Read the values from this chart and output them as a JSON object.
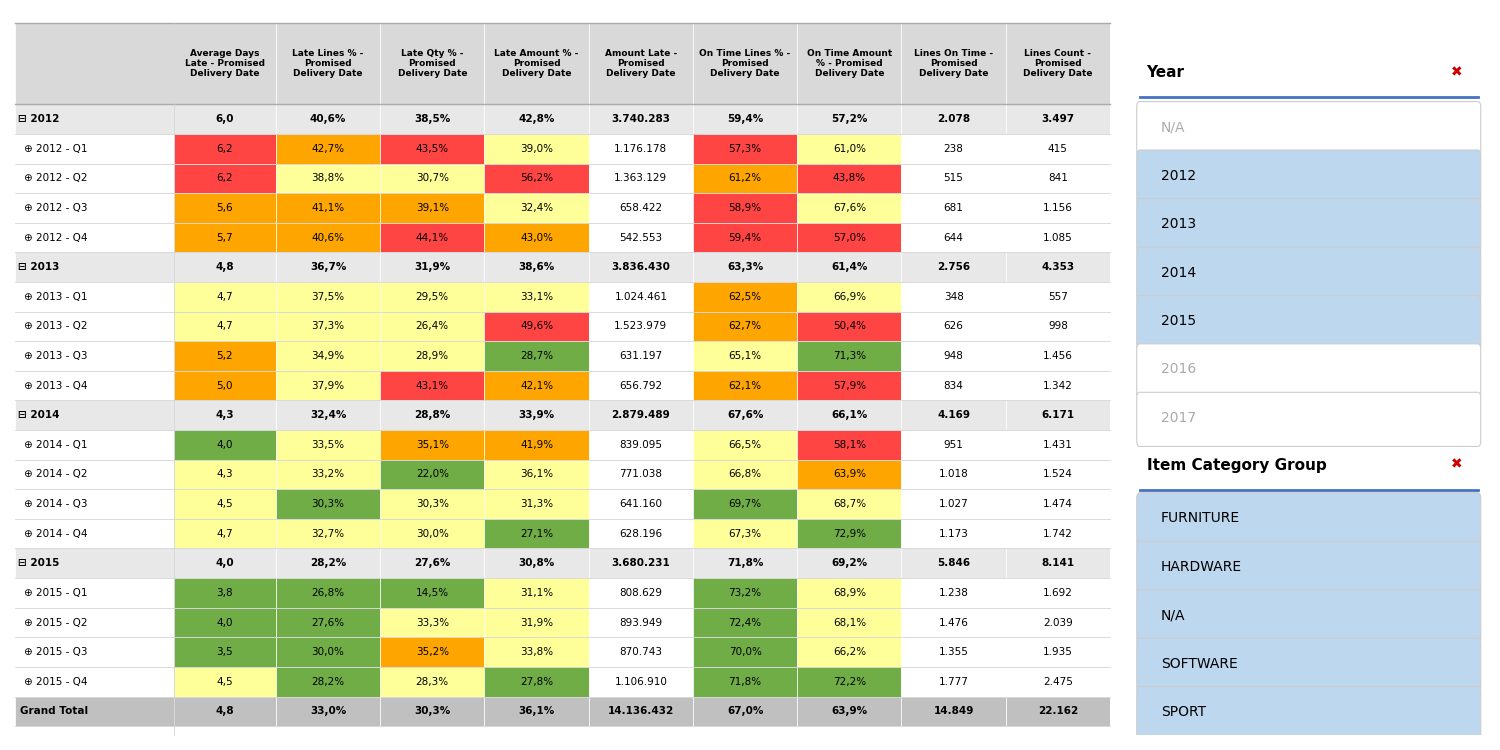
{
  "columns": [
    "Average Days\nLate - Promised\nDelivery Date",
    "Late Lines % -\nPromised\nDelivery Date",
    "Late Qty % -\nPromised\nDelivery Date",
    "Late Amount % -\nPromised\nDelivery Date",
    "Amount Late -\nPromised\nDelivery Date",
    "On Time Lines % -\nPromised\nDelivery Date",
    "On Time Amount\n% - Promised\nDelivery Date",
    "Lines On Time -\nPromised\nDelivery Date",
    "Lines Count -\nPromised\nDelivery Date"
  ],
  "rows": [
    {
      "label": "2012",
      "level": 0,
      "bold": true,
      "values": [
        "6,0",
        "40,6%",
        "38,5%",
        "42,8%",
        "3.740.283",
        "59,4%",
        "57,2%",
        "2.078",
        "3.497"
      ],
      "colors": [
        "",
        "",
        "",
        "",
        "",
        "",
        "",
        "",
        ""
      ]
    },
    {
      "label": "2012 - Q1",
      "level": 1,
      "bold": false,
      "values": [
        "6,2",
        "42,7%",
        "43,5%",
        "39,0%",
        "1.176.178",
        "57,3%",
        "61,0%",
        "238",
        "415"
      ],
      "colors": [
        "red",
        "orange",
        "red",
        "yellow",
        "",
        "red",
        "yellow",
        "",
        ""
      ]
    },
    {
      "label": "2012 - Q2",
      "level": 1,
      "bold": false,
      "values": [
        "6,2",
        "38,8%",
        "30,7%",
        "56,2%",
        "1.363.129",
        "61,2%",
        "43,8%",
        "515",
        "841"
      ],
      "colors": [
        "red",
        "yellow",
        "yellow",
        "red",
        "",
        "orange",
        "red",
        "",
        ""
      ]
    },
    {
      "label": "2012 - Q3",
      "level": 1,
      "bold": false,
      "values": [
        "5,6",
        "41,1%",
        "39,1%",
        "32,4%",
        "658.422",
        "58,9%",
        "67,6%",
        "681",
        "1.156"
      ],
      "colors": [
        "orange",
        "orange",
        "orange",
        "yellow",
        "",
        "red",
        "yellow",
        "",
        ""
      ]
    },
    {
      "label": "2012 - Q4",
      "level": 1,
      "bold": false,
      "values": [
        "5,7",
        "40,6%",
        "44,1%",
        "43,0%",
        "542.553",
        "59,4%",
        "57,0%",
        "644",
        "1.085"
      ],
      "colors": [
        "orange",
        "orange",
        "red",
        "orange",
        "",
        "red",
        "red",
        "",
        ""
      ]
    },
    {
      "label": "2013",
      "level": 0,
      "bold": true,
      "values": [
        "4,8",
        "36,7%",
        "31,9%",
        "38,6%",
        "3.836.430",
        "63,3%",
        "61,4%",
        "2.756",
        "4.353"
      ],
      "colors": [
        "",
        "",
        "",
        "",
        "",
        "",
        "",
        "",
        ""
      ]
    },
    {
      "label": "2013 - Q1",
      "level": 1,
      "bold": false,
      "values": [
        "4,7",
        "37,5%",
        "29,5%",
        "33,1%",
        "1.024.461",
        "62,5%",
        "66,9%",
        "348",
        "557"
      ],
      "colors": [
        "yellow",
        "yellow",
        "yellow",
        "yellow",
        "",
        "orange",
        "yellow",
        "",
        ""
      ]
    },
    {
      "label": "2013 - Q2",
      "level": 1,
      "bold": false,
      "values": [
        "4,7",
        "37,3%",
        "26,4%",
        "49,6%",
        "1.523.979",
        "62,7%",
        "50,4%",
        "626",
        "998"
      ],
      "colors": [
        "yellow",
        "yellow",
        "yellow",
        "red",
        "",
        "orange",
        "red",
        "",
        ""
      ]
    },
    {
      "label": "2013 - Q3",
      "level": 1,
      "bold": false,
      "values": [
        "5,2",
        "34,9%",
        "28,9%",
        "28,7%",
        "631.197",
        "65,1%",
        "71,3%",
        "948",
        "1.456"
      ],
      "colors": [
        "orange",
        "yellow",
        "yellow",
        "green",
        "",
        "yellow",
        "green",
        "",
        ""
      ]
    },
    {
      "label": "2013 - Q4",
      "level": 1,
      "bold": false,
      "values": [
        "5,0",
        "37,9%",
        "43,1%",
        "42,1%",
        "656.792",
        "62,1%",
        "57,9%",
        "834",
        "1.342"
      ],
      "colors": [
        "orange",
        "yellow",
        "red",
        "orange",
        "",
        "orange",
        "red",
        "",
        ""
      ]
    },
    {
      "label": "2014",
      "level": 0,
      "bold": true,
      "values": [
        "4,3",
        "32,4%",
        "28,8%",
        "33,9%",
        "2.879.489",
        "67,6%",
        "66,1%",
        "4.169",
        "6.171"
      ],
      "colors": [
        "",
        "",
        "",
        "",
        "",
        "",
        "",
        "",
        ""
      ]
    },
    {
      "label": "2014 - Q1",
      "level": 1,
      "bold": false,
      "values": [
        "4,0",
        "33,5%",
        "35,1%",
        "41,9%",
        "839.095",
        "66,5%",
        "58,1%",
        "951",
        "1.431"
      ],
      "colors": [
        "green",
        "yellow",
        "orange",
        "orange",
        "",
        "yellow",
        "red",
        "",
        ""
      ]
    },
    {
      "label": "2014 - Q2",
      "level": 1,
      "bold": false,
      "values": [
        "4,3",
        "33,2%",
        "22,0%",
        "36,1%",
        "771.038",
        "66,8%",
        "63,9%",
        "1.018",
        "1.524"
      ],
      "colors": [
        "yellow",
        "yellow",
        "green",
        "yellow",
        "",
        "yellow",
        "orange",
        "",
        ""
      ]
    },
    {
      "label": "2014 - Q3",
      "level": 1,
      "bold": false,
      "values": [
        "4,5",
        "30,3%",
        "30,3%",
        "31,3%",
        "641.160",
        "69,7%",
        "68,7%",
        "1.027",
        "1.474"
      ],
      "colors": [
        "yellow",
        "green",
        "yellow",
        "yellow",
        "",
        "green",
        "yellow",
        "",
        ""
      ]
    },
    {
      "label": "2014 - Q4",
      "level": 1,
      "bold": false,
      "values": [
        "4,7",
        "32,7%",
        "30,0%",
        "27,1%",
        "628.196",
        "67,3%",
        "72,9%",
        "1.173",
        "1.742"
      ],
      "colors": [
        "yellow",
        "yellow",
        "yellow",
        "green",
        "",
        "yellow",
        "green",
        "",
        ""
      ]
    },
    {
      "label": "2015",
      "level": 0,
      "bold": true,
      "values": [
        "4,0",
        "28,2%",
        "27,6%",
        "30,8%",
        "3.680.231",
        "71,8%",
        "69,2%",
        "5.846",
        "8.141"
      ],
      "colors": [
        "",
        "",
        "",
        "",
        "",
        "",
        "",
        "",
        ""
      ]
    },
    {
      "label": "2015 - Q1",
      "level": 1,
      "bold": false,
      "values": [
        "3,8",
        "26,8%",
        "14,5%",
        "31,1%",
        "808.629",
        "73,2%",
        "68,9%",
        "1.238",
        "1.692"
      ],
      "colors": [
        "green",
        "green",
        "green",
        "yellow",
        "",
        "green",
        "yellow",
        "",
        ""
      ]
    },
    {
      "label": "2015 - Q2",
      "level": 1,
      "bold": false,
      "values": [
        "4,0",
        "27,6%",
        "33,3%",
        "31,9%",
        "893.949",
        "72,4%",
        "68,1%",
        "1.476",
        "2.039"
      ],
      "colors": [
        "green",
        "green",
        "yellow",
        "yellow",
        "",
        "green",
        "yellow",
        "",
        ""
      ]
    },
    {
      "label": "2015 - Q3",
      "level": 1,
      "bold": false,
      "values": [
        "3,5",
        "30,0%",
        "35,2%",
        "33,8%",
        "870.743",
        "70,0%",
        "66,2%",
        "1.355",
        "1.935"
      ],
      "colors": [
        "green",
        "green",
        "orange",
        "yellow",
        "",
        "green",
        "yellow",
        "",
        ""
      ]
    },
    {
      "label": "2015 - Q4",
      "level": 1,
      "bold": false,
      "values": [
        "4,5",
        "28,2%",
        "28,3%",
        "27,8%",
        "1.106.910",
        "71,8%",
        "72,2%",
        "1.777",
        "2.475"
      ],
      "colors": [
        "yellow",
        "green",
        "yellow",
        "green",
        "",
        "green",
        "green",
        "",
        ""
      ]
    },
    {
      "label": "Grand Total",
      "level": 0,
      "bold": true,
      "values": [
        "4,8",
        "33,0%",
        "30,3%",
        "36,1%",
        "14.136.432",
        "67,0%",
        "63,9%",
        "14.849",
        "22.162"
      ],
      "colors": [
        "",
        "",
        "",
        "",
        "",
        "",
        "",
        "",
        ""
      ],
      "is_grand_total": true
    }
  ],
  "color_map": {
    "red": "#FF4444",
    "orange": "#FFA500",
    "yellow": "#FFFF99",
    "green": "#70AD47",
    "": "#FFFFFF"
  },
  "sidebar_years": [
    "N/A",
    "2012",
    "2013",
    "2014",
    "2015",
    "2016",
    "2017"
  ],
  "sidebar_active_years": [
    "2012",
    "2013",
    "2014",
    "2015"
  ],
  "sidebar_categories": [
    "FURNITURE",
    "HARDWARE",
    "N/A",
    "SOFTWARE",
    "SPORT"
  ],
  "bg_color": "#FFFFFF",
  "header_bg": "#D9D9D9",
  "row_year_bg": "#E8E8E8",
  "grand_total_bg": "#C0C0C0",
  "sidebar_active_color": "#BDD7EE",
  "sidebar_inactive_color": "#FFFFFF",
  "sidebar_inactive_text": "#AAAAAA"
}
